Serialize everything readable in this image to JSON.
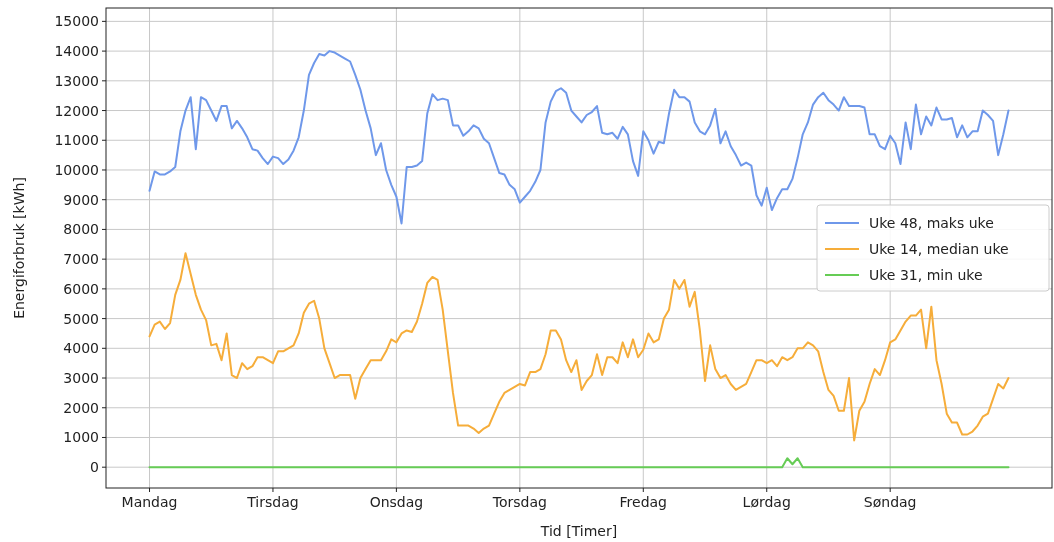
{
  "chart_data": {
    "type": "line",
    "xlabel": "Tid [Timer]",
    "ylabel": "Energiforbruk [kWh]",
    "categories": [
      "Mandag",
      null,
      null,
      null,
      null,
      null,
      null,
      null,
      null,
      null,
      null,
      null,
      null,
      null,
      null,
      null,
      null,
      null,
      null,
      null,
      null,
      null,
      null,
      null,
      "Tirsdag",
      null,
      null,
      null,
      null,
      null,
      null,
      null,
      null,
      null,
      null,
      null,
      null,
      null,
      null,
      null,
      null,
      null,
      null,
      null,
      null,
      null,
      null,
      null,
      "Onsdag",
      null,
      null,
      null,
      null,
      null,
      null,
      null,
      null,
      null,
      null,
      null,
      null,
      null,
      null,
      null,
      null,
      null,
      null,
      null,
      null,
      null,
      null,
      null,
      "Torsdag",
      null,
      null,
      null,
      null,
      null,
      null,
      null,
      null,
      null,
      null,
      null,
      null,
      null,
      null,
      null,
      null,
      null,
      null,
      null,
      null,
      null,
      null,
      null,
      "Fredag",
      null,
      null,
      null,
      null,
      null,
      null,
      null,
      null,
      null,
      null,
      null,
      null,
      null,
      null,
      null,
      null,
      null,
      null,
      null,
      null,
      null,
      null,
      null,
      "Lørdag",
      null,
      null,
      null,
      null,
      null,
      null,
      null,
      null,
      null,
      null,
      null,
      null,
      null,
      null,
      null,
      null,
      null,
      null,
      null,
      null,
      null,
      null,
      null,
      "Søndag",
      null,
      null,
      null,
      null,
      null,
      null,
      null,
      null,
      null,
      null,
      null,
      null,
      null,
      null,
      null,
      null,
      null,
      null,
      null,
      null,
      null,
      null,
      null
    ],
    "series": [
      {
        "name": "Uke 48, maks uke",
        "color": "#6f98ea",
        "values": [
          9300,
          9950,
          9850,
          9850,
          9950,
          10100,
          11300,
          12000,
          12450,
          10700,
          12450,
          12350,
          12000,
          11650,
          12150,
          12150,
          11400,
          11650,
          11400,
          11100,
          10700,
          10650,
          10400,
          10200,
          10450,
          10400,
          10200,
          10350,
          10650,
          11100,
          12000,
          13200,
          13600,
          13900,
          13850,
          14000,
          13950,
          13850,
          13750,
          13650,
          13200,
          12700,
          12000,
          11400,
          10500,
          10900,
          10000,
          9500,
          9100,
          8200,
          10100,
          10100,
          10150,
          10300,
          11900,
          12550,
          12350,
          12400,
          12350,
          11500,
          11500,
          11150,
          11300,
          11500,
          11400,
          11050,
          10900,
          10400,
          9900,
          9850,
          9500,
          9350,
          8900,
          9100,
          9300,
          9600,
          10000,
          11600,
          12300,
          12650,
          12750,
          12600,
          12000,
          11800,
          11600,
          11850,
          11950,
          12150,
          11250,
          11200,
          11250,
          11050,
          11450,
          11200,
          10300,
          9800,
          11300,
          11000,
          10550,
          10950,
          10900,
          11900,
          12700,
          12450,
          12450,
          12300,
          11600,
          11300,
          11200,
          11500,
          12050,
          10900,
          11300,
          10800,
          10500,
          10150,
          10250,
          10150,
          9150,
          8800,
          9400,
          8650,
          9050,
          9350,
          9350,
          9700,
          10400,
          11200,
          11600,
          12200,
          12450,
          12600,
          12350,
          12200,
          12000,
          12450,
          12150,
          12150,
          12150,
          12100,
          11200,
          11200,
          10800,
          10700,
          11150,
          10900,
          10200,
          11600,
          10700,
          12200,
          11200,
          11800,
          11500,
          12100,
          11700,
          11700,
          11750,
          11100,
          11500,
          11100,
          11300,
          11300,
          12000,
          11850,
          11650,
          10500,
          11200,
          12000
        ]
      },
      {
        "name": "Uke 14, median uke",
        "color": "#f6ad3a",
        "values": [
          4400,
          4800,
          4900,
          4650,
          4850,
          5800,
          6300,
          7200,
          6500,
          5800,
          5300,
          4950,
          4100,
          4150,
          3600,
          4500,
          3100,
          3000,
          3500,
          3300,
          3400,
          3700,
          3700,
          3600,
          3500,
          3900,
          3900,
          4000,
          4100,
          4500,
          5200,
          5500,
          5600,
          5000,
          4000,
          3500,
          3000,
          3100,
          3100,
          3100,
          2300,
          3000,
          3300,
          3600,
          3600,
          3600,
          3900,
          4300,
          4200,
          4500,
          4600,
          4550,
          4900,
          5500,
          6200,
          6400,
          6300,
          5300,
          3900,
          2500,
          1400,
          1400,
          1400,
          1300,
          1150,
          1300,
          1400,
          1800,
          2200,
          2500,
          2600,
          2700,
          2800,
          2750,
          3200,
          3200,
          3300,
          3800,
          4600,
          4600,
          4300,
          3600,
          3200,
          3600,
          2600,
          2900,
          3100,
          3800,
          3100,
          3700,
          3700,
          3500,
          4200,
          3700,
          4300,
          3700,
          3950,
          4500,
          4200,
          4300,
          5000,
          5300,
          6300,
          6000,
          6300,
          5400,
          5900,
          4600,
          2900,
          4100,
          3300,
          3000,
          3100,
          2800,
          2600,
          2700,
          2800,
          3200,
          3600,
          3600,
          3500,
          3600,
          3400,
          3700,
          3600,
          3700,
          4000,
          4000,
          4200,
          4100,
          3900,
          3200,
          2600,
          2400,
          1900,
          1900,
          3000,
          900,
          1900,
          2200,
          2800,
          3300,
          3100,
          3600,
          4200,
          4300,
          4600,
          4900,
          5100,
          5100,
          5300,
          4000,
          5400,
          3600,
          2800,
          1800,
          1500,
          1500,
          1100,
          1100,
          1200,
          1400,
          1700,
          1800,
          2300,
          2800,
          2650,
          3000
        ]
      },
      {
        "name": "Uke 31, min uke",
        "color": "#66cc55",
        "values": [
          0,
          0,
          0,
          0,
          0,
          0,
          0,
          0,
          0,
          0,
          0,
          0,
          0,
          0,
          0,
          0,
          0,
          0,
          0,
          0,
          0,
          0,
          0,
          0,
          0,
          0,
          0,
          0,
          0,
          0,
          0,
          0,
          0,
          0,
          0,
          0,
          0,
          0,
          0,
          0,
          0,
          0,
          0,
          0,
          0,
          0,
          0,
          0,
          0,
          0,
          0,
          0,
          0,
          0,
          0,
          0,
          0,
          0,
          0,
          0,
          0,
          0,
          0,
          0,
          0,
          0,
          0,
          0,
          0,
          0,
          0,
          0,
          0,
          0,
          0,
          0,
          0,
          0,
          0,
          0,
          0,
          0,
          0,
          0,
          0,
          0,
          0,
          0,
          0,
          0,
          0,
          0,
          0,
          0,
          0,
          0,
          0,
          0,
          0,
          0,
          0,
          0,
          0,
          0,
          0,
          0,
          0,
          0,
          0,
          0,
          0,
          0,
          0,
          0,
          0,
          0,
          0,
          0,
          0,
          0,
          0,
          0,
          0,
          0,
          300,
          100,
          300,
          0,
          0,
          0,
          0,
          0,
          0,
          0,
          0,
          0,
          0,
          0,
          0,
          0,
          0,
          0,
          0,
          0,
          0,
          0,
          0,
          0,
          0,
          0,
          0,
          0,
          0,
          0,
          0,
          0,
          0,
          0,
          0,
          0,
          0,
          0,
          0,
          0,
          0,
          0,
          0,
          0
        ]
      }
    ],
    "ylim": [
      -700,
      15450
    ],
    "yticks": [
      0,
      1000,
      2000,
      3000,
      4000,
      5000,
      6000,
      7000,
      8000,
      9000,
      10000,
      11000,
      12000,
      13000,
      14000,
      15000
    ],
    "grid": true,
    "legend": "right",
    "line_style": "solid",
    "marker": "none"
  }
}
